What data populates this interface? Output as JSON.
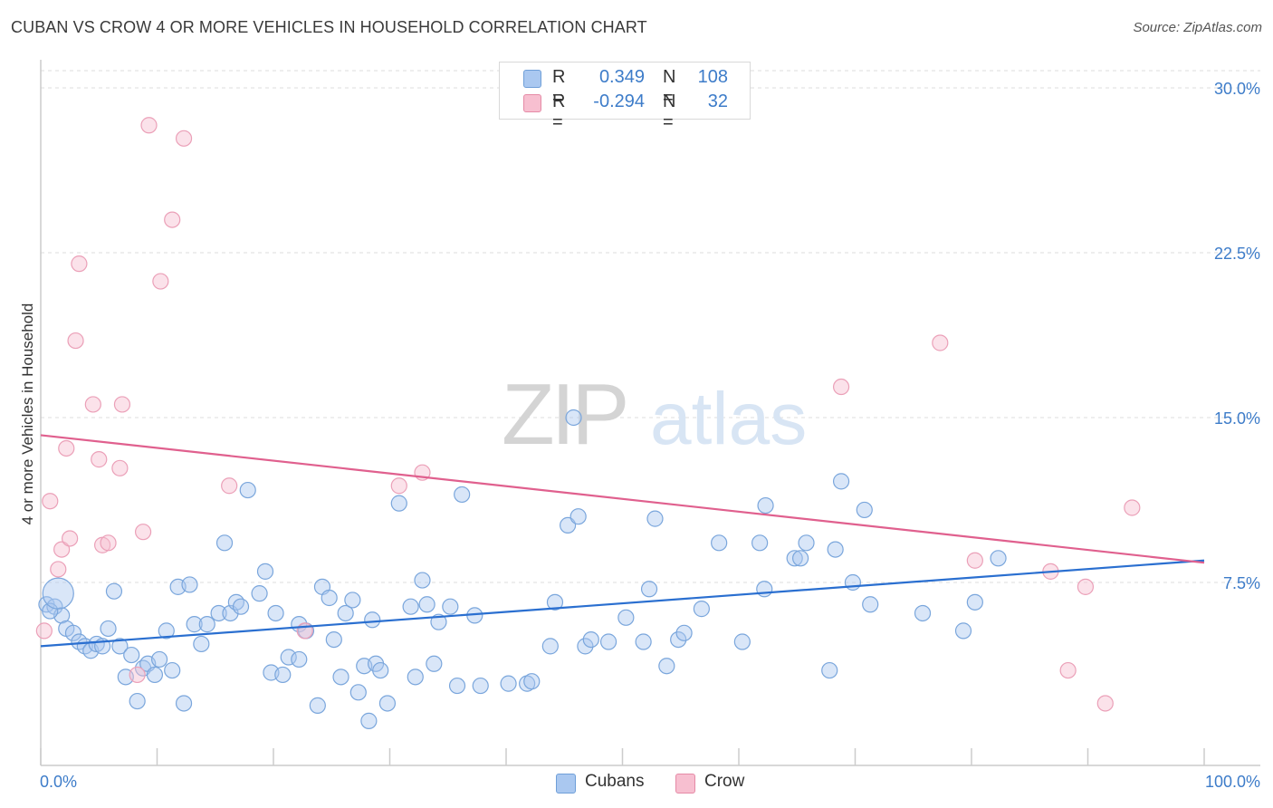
{
  "title": "CUBAN VS CROW 4 OR MORE VEHICLES IN HOUSEHOLD CORRELATION CHART",
  "source": "Source: ZipAtlas.com",
  "watermark": {
    "zip": "ZIP",
    "atlas": "atlas"
  },
  "legend": {
    "r_label": "R =",
    "n_label": "N =",
    "rows": [
      {
        "r": "0.349",
        "n": "108",
        "color": "#aac8f0",
        "border": "#6f9fd8"
      },
      {
        "r": "-0.294",
        "n": "32",
        "color": "#f7bfd0",
        "border": "#e58aa6"
      }
    ]
  },
  "bottom_legend": [
    {
      "label": "Cubans",
      "color": "#aac8f0",
      "border": "#6f9fd8"
    },
    {
      "label": "Crow",
      "color": "#f7bfd0",
      "border": "#e58aa6"
    }
  ],
  "chart_data": {
    "type": "scatter",
    "ylabel": "4 or more Vehicles in Household",
    "xlim": [
      0,
      100
    ],
    "ylim": [
      0,
      30
    ],
    "x_tick_labels": [
      "0.0%",
      "100.0%"
    ],
    "y_ticks": [
      7.5,
      15.0,
      22.5,
      30.0
    ],
    "y_tick_labels": [
      "7.5%",
      "15.0%",
      "22.5%",
      "30.0%"
    ],
    "grid": true,
    "series": [
      {
        "name": "Cubans",
        "color": "#6a9fe0",
        "trend": {
          "x": [
            0,
            100
          ],
          "y": [
            4.6,
            8.5
          ]
        },
        "points": [
          [
            0.5,
            6.5
          ],
          [
            1.2,
            6.4
          ],
          [
            1.8,
            6.0
          ],
          [
            2.2,
            5.4
          ],
          [
            2.8,
            5.2
          ],
          [
            3.3,
            4.8
          ],
          [
            3.8,
            4.6
          ],
          [
            4.3,
            4.4
          ],
          [
            4.8,
            4.7
          ],
          [
            5.3,
            4.6
          ],
          [
            5.8,
            5.4
          ],
          [
            6.3,
            7.1
          ],
          [
            6.8,
            4.6
          ],
          [
            7.3,
            3.2
          ],
          [
            7.8,
            4.2
          ],
          [
            8.3,
            2.1
          ],
          [
            8.8,
            3.6
          ],
          [
            9.2,
            3.8
          ],
          [
            9.8,
            3.3
          ],
          [
            10.2,
            4.0
          ],
          [
            10.8,
            5.3
          ],
          [
            11.3,
            3.5
          ],
          [
            11.8,
            7.3
          ],
          [
            12.3,
            2.0
          ],
          [
            12.8,
            7.4
          ],
          [
            13.2,
            5.6
          ],
          [
            13.8,
            4.7
          ],
          [
            14.3,
            5.6
          ],
          [
            15.3,
            6.1
          ],
          [
            15.8,
            9.3
          ],
          [
            16.3,
            6.1
          ],
          [
            16.8,
            6.6
          ],
          [
            17.2,
            6.4
          ],
          [
            17.8,
            11.7
          ],
          [
            18.8,
            7.0
          ],
          [
            19.3,
            8.0
          ],
          [
            19.8,
            3.4
          ],
          [
            20.2,
            6.1
          ],
          [
            20.8,
            3.3
          ],
          [
            21.3,
            4.1
          ],
          [
            22.2,
            4.0
          ],
          [
            22.2,
            5.6
          ],
          [
            22.8,
            5.3
          ],
          [
            23.8,
            1.9
          ],
          [
            24.2,
            7.3
          ],
          [
            24.8,
            6.8
          ],
          [
            25.2,
            4.9
          ],
          [
            25.8,
            3.2
          ],
          [
            26.2,
            6.1
          ],
          [
            26.8,
            6.7
          ],
          [
            27.3,
            2.5
          ],
          [
            27.8,
            3.7
          ],
          [
            28.2,
            1.2
          ],
          [
            28.5,
            5.8
          ],
          [
            28.8,
            3.8
          ],
          [
            29.2,
            3.5
          ],
          [
            29.8,
            2.0
          ],
          [
            30.8,
            11.1
          ],
          [
            31.8,
            6.4
          ],
          [
            32.2,
            3.2
          ],
          [
            32.8,
            7.6
          ],
          [
            33.2,
            6.5
          ],
          [
            33.8,
            3.8
          ],
          [
            34.2,
            5.7
          ],
          [
            35.2,
            6.4
          ],
          [
            35.8,
            2.8
          ],
          [
            36.2,
            11.5
          ],
          [
            37.3,
            6.0
          ],
          [
            37.8,
            2.8
          ],
          [
            40.2,
            2.9
          ],
          [
            41.8,
            2.9
          ],
          [
            42.2,
            3.0
          ],
          [
            43.8,
            4.6
          ],
          [
            44.2,
            6.6
          ],
          [
            45.3,
            10.1
          ],
          [
            45.8,
            15.0
          ],
          [
            46.2,
            10.5
          ],
          [
            46.8,
            4.6
          ],
          [
            47.3,
            4.9
          ],
          [
            48.8,
            4.8
          ],
          [
            50.3,
            5.9
          ],
          [
            51.8,
            4.8
          ],
          [
            52.3,
            7.2
          ],
          [
            52.8,
            10.4
          ],
          [
            53.8,
            3.7
          ],
          [
            54.8,
            4.9
          ],
          [
            55.3,
            5.2
          ],
          [
            56.8,
            6.3
          ],
          [
            58.3,
            9.3
          ],
          [
            60.3,
            4.8
          ],
          [
            61.8,
            9.3
          ],
          [
            62.2,
            7.2
          ],
          [
            62.3,
            11.0
          ],
          [
            64.8,
            8.6
          ],
          [
            65.3,
            8.6
          ],
          [
            65.8,
            9.3
          ],
          [
            67.8,
            3.5
          ],
          [
            68.3,
            9.0
          ],
          [
            68.8,
            12.1
          ],
          [
            69.8,
            7.5
          ],
          [
            70.8,
            10.8
          ],
          [
            71.3,
            6.5
          ],
          [
            75.8,
            6.1
          ],
          [
            79.3,
            5.3
          ],
          [
            80.3,
            6.6
          ],
          [
            82.3,
            8.6
          ],
          [
            0.8,
            6.2
          ],
          [
            1.5,
            7.0
          ]
        ]
      },
      {
        "name": "Crow",
        "color": "#f2a6bf",
        "trend": {
          "x": [
            0,
            100
          ],
          "y": [
            14.2,
            8.4
          ]
        },
        "points": [
          [
            0.3,
            5.3
          ],
          [
            0.8,
            11.2
          ],
          [
            1.5,
            8.1
          ],
          [
            1.8,
            9.0
          ],
          [
            2.2,
            13.6
          ],
          [
            2.5,
            9.5
          ],
          [
            3.0,
            18.5
          ],
          [
            3.3,
            22.0
          ],
          [
            4.5,
            15.6
          ],
          [
            5.0,
            13.1
          ],
          [
            5.3,
            9.2
          ],
          [
            5.8,
            9.3
          ],
          [
            6.8,
            12.7
          ],
          [
            7.0,
            15.6
          ],
          [
            8.3,
            3.3
          ],
          [
            8.8,
            9.8
          ],
          [
            9.3,
            28.3
          ],
          [
            10.3,
            21.2
          ],
          [
            11.3,
            24.0
          ],
          [
            12.3,
            27.7
          ],
          [
            16.2,
            11.9
          ],
          [
            22.7,
            5.3
          ],
          [
            30.8,
            11.9
          ],
          [
            32.8,
            12.5
          ],
          [
            68.8,
            16.4
          ],
          [
            77.3,
            18.4
          ],
          [
            80.3,
            8.5
          ],
          [
            86.8,
            8.0
          ],
          [
            88.3,
            3.5
          ],
          [
            89.8,
            7.3
          ],
          [
            91.5,
            2.0
          ],
          [
            93.8,
            10.9
          ]
        ]
      }
    ]
  }
}
